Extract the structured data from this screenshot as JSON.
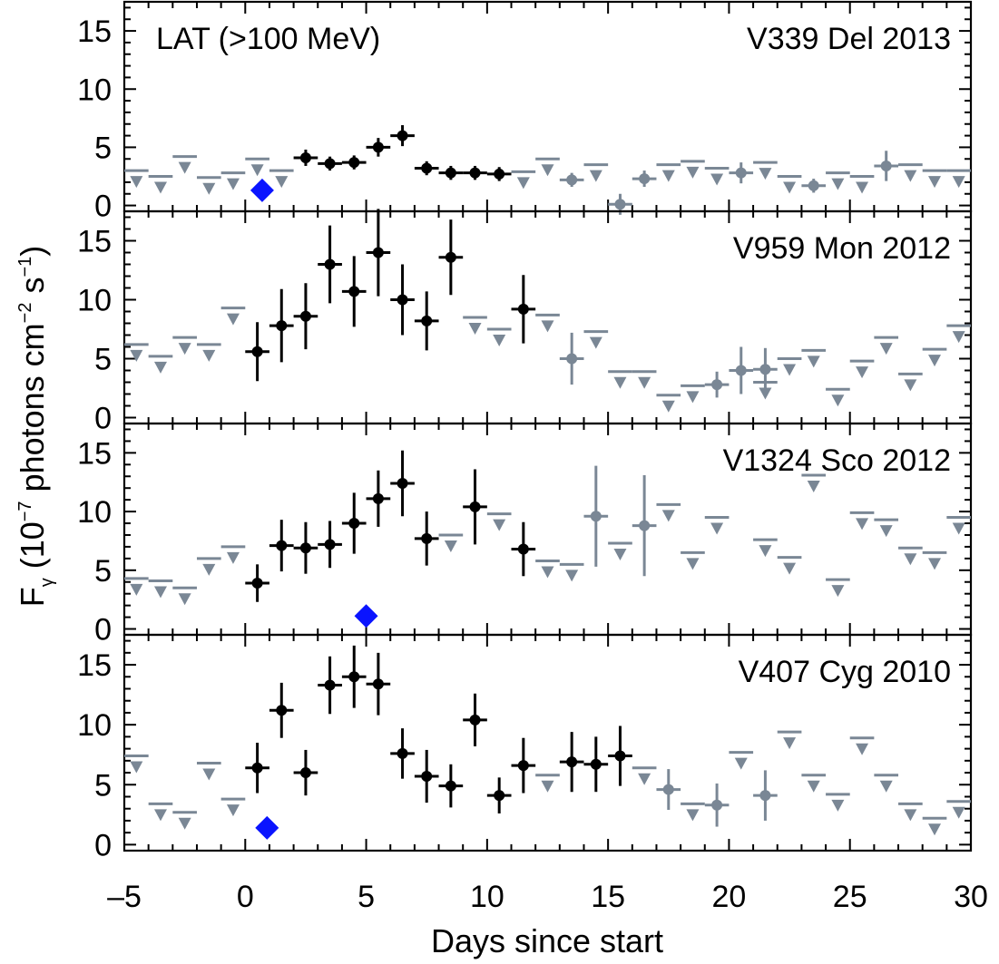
{
  "chart_data": {
    "type": "scatter",
    "xlabel": "Days since start",
    "ylabel_parts": [
      "F",
      "γ",
      " (10",
      "−7",
      "  photons cm",
      "−2",
      " s",
      "−1",
      ")"
    ],
    "xlim": [
      -5,
      30
    ],
    "x_ticks": [
      "–5",
      "0",
      "5",
      "10",
      "15",
      "20",
      "25",
      "30"
    ],
    "x_tick_values": [
      -5,
      0,
      5,
      10,
      15,
      20,
      25,
      30
    ],
    "y_ticks": [
      "0",
      "5",
      "10",
      "15"
    ],
    "y_tick_values": [
      0,
      5,
      10,
      15
    ],
    "colors": {
      "detection": "#000000",
      "upper_limit": "#7a8795",
      "marker": "#0a14ff"
    },
    "panels": [
      {
        "label": "V339 Del 2013",
        "instrument_label": "LAT (>100 MeV)",
        "ylim": [
          -0.5,
          17.5
        ],
        "detections": [
          {
            "x": 2.5,
            "y": 4.1,
            "yerr": 0.7
          },
          {
            "x": 3.5,
            "y": 3.6,
            "yerr": 0.6
          },
          {
            "x": 4.5,
            "y": 3.7,
            "yerr": 0.6
          },
          {
            "x": 5.5,
            "y": 5.0,
            "yerr": 0.8
          },
          {
            "x": 6.5,
            "y": 6.0,
            "yerr": 0.9
          },
          {
            "x": 7.5,
            "y": 3.2,
            "yerr": 0.6
          },
          {
            "x": 8.5,
            "y": 2.8,
            "yerr": 0.6
          },
          {
            "x": 9.5,
            "y": 2.8,
            "yerr": 0.6
          },
          {
            "x": 10.5,
            "y": 2.7,
            "yerr": 0.6
          }
        ],
        "upper_limits": [
          {
            "x": -4.5,
            "y": 3.0
          },
          {
            "x": -3.5,
            "y": 2.5
          },
          {
            "x": -2.5,
            "y": 4.2
          },
          {
            "x": -1.5,
            "y": 2.4
          },
          {
            "x": -0.5,
            "y": 2.8
          },
          {
            "x": 0.5,
            "y": 4.0
          },
          {
            "x": 1.5,
            "y": 3.0
          },
          {
            "x": 11.5,
            "y": 2.9
          },
          {
            "x": 12.5,
            "y": 4.0
          },
          {
            "x": 14.5,
            "y": 3.5
          },
          {
            "x": 17.5,
            "y": 3.5
          },
          {
            "x": 18.5,
            "y": 3.8
          },
          {
            "x": 19.5,
            "y": 3.2
          },
          {
            "x": 21.5,
            "y": 3.7
          },
          {
            "x": 22.5,
            "y": 2.5
          },
          {
            "x": 24.5,
            "y": 2.8
          },
          {
            "x": 25.5,
            "y": 2.5
          },
          {
            "x": 27.5,
            "y": 3.5
          },
          {
            "x": 28.5,
            "y": 3.0
          },
          {
            "x": 29.5,
            "y": 3.0
          }
        ],
        "gray_points": [
          {
            "x": 13.5,
            "y": 2.2,
            "yerr": 0.6
          },
          {
            "x": 15.5,
            "y": 0.1,
            "yerr": 0.9
          },
          {
            "x": 16.5,
            "y": 2.3,
            "yerr": 0.7
          },
          {
            "x": 20.5,
            "y": 2.8,
            "yerr": 0.9
          },
          {
            "x": 23.5,
            "y": 1.7,
            "yerr": 0.6
          },
          {
            "x": 26.5,
            "y": 3.4,
            "yerr": 1.3
          }
        ],
        "markers": [
          {
            "x": 0.7,
            "y": 1.3
          }
        ]
      },
      {
        "label": "V959 Mon 2012",
        "ylim": [
          -0.5,
          17.5
        ],
        "detections": [
          {
            "x": 0.5,
            "y": 5.6,
            "yerr": 2.5
          },
          {
            "x": 1.5,
            "y": 7.8,
            "yerr": 3.1
          },
          {
            "x": 2.5,
            "y": 8.6,
            "yerr": 2.8
          },
          {
            "x": 3.5,
            "y": 13.0,
            "yerr": 3.3
          },
          {
            "x": 4.5,
            "y": 10.7,
            "yerr": 3.0
          },
          {
            "x": 5.5,
            "y": 14.0,
            "yerr": 3.7
          },
          {
            "x": 6.5,
            "y": 10.0,
            "yerr": 3.0
          },
          {
            "x": 7.5,
            "y": 8.2,
            "yerr": 2.5
          },
          {
            "x": 8.5,
            "y": 13.6,
            "yerr": 3.2
          },
          {
            "x": 11.5,
            "y": 9.2,
            "yerr": 2.9
          }
        ],
        "upper_limits": [
          {
            "x": -4.5,
            "y": 6.2
          },
          {
            "x": -3.5,
            "y": 5.2
          },
          {
            "x": -2.5,
            "y": 6.8
          },
          {
            "x": -1.5,
            "y": 6.2
          },
          {
            "x": -0.5,
            "y": 9.3
          },
          {
            "x": 9.5,
            "y": 8.5
          },
          {
            "x": 10.5,
            "y": 7.5
          },
          {
            "x": 12.5,
            "y": 8.7
          },
          {
            "x": 14.5,
            "y": 7.3
          },
          {
            "x": 15.5,
            "y": 3.9
          },
          {
            "x": 16.5,
            "y": 3.9
          },
          {
            "x": 17.5,
            "y": 1.9
          },
          {
            "x": 18.5,
            "y": 2.7
          },
          {
            "x": 21.5,
            "y": 3.0
          },
          {
            "x": 22.5,
            "y": 5.0
          },
          {
            "x": 23.5,
            "y": 5.7
          },
          {
            "x": 24.5,
            "y": 2.4
          },
          {
            "x": 25.5,
            "y": 4.8
          },
          {
            "x": 26.5,
            "y": 6.8
          },
          {
            "x": 27.5,
            "y": 3.7
          },
          {
            "x": 28.5,
            "y": 5.8
          },
          {
            "x": 29.5,
            "y": 7.8
          }
        ],
        "gray_points": [
          {
            "x": 13.5,
            "y": 5.0,
            "yerr": 2.2
          },
          {
            "x": 19.5,
            "y": 2.8,
            "yerr": 1.1
          },
          {
            "x": 20.5,
            "y": 4.0,
            "yerr": 2.0
          },
          {
            "x": 21.5,
            "y": 4.1,
            "yerr": 1.8
          }
        ],
        "markers": []
      },
      {
        "label": "V1324 Sco 2012",
        "ylim": [
          -0.5,
          17.5
        ],
        "detections": [
          {
            "x": 0.5,
            "y": 3.9,
            "yerr": 1.6
          },
          {
            "x": 1.5,
            "y": 7.1,
            "yerr": 2.2
          },
          {
            "x": 2.5,
            "y": 6.9,
            "yerr": 2.2
          },
          {
            "x": 3.5,
            "y": 7.2,
            "yerr": 2.0
          },
          {
            "x": 4.5,
            "y": 9.0,
            "yerr": 2.6
          },
          {
            "x": 5.5,
            "y": 11.1,
            "yerr": 2.4
          },
          {
            "x": 6.5,
            "y": 12.4,
            "yerr": 2.8
          },
          {
            "x": 7.5,
            "y": 7.7,
            "yerr": 2.3
          },
          {
            "x": 9.5,
            "y": 10.4,
            "yerr": 3.2
          },
          {
            "x": 11.5,
            "y": 6.8,
            "yerr": 2.3
          }
        ],
        "upper_limits": [
          {
            "x": -4.5,
            "y": 4.3
          },
          {
            "x": -3.5,
            "y": 4.1
          },
          {
            "x": -2.5,
            "y": 3.5
          },
          {
            "x": -1.5,
            "y": 6.0
          },
          {
            "x": -0.5,
            "y": 7.0
          },
          {
            "x": 8.5,
            "y": 8.0
          },
          {
            "x": 10.5,
            "y": 9.8
          },
          {
            "x": 12.5,
            "y": 5.8
          },
          {
            "x": 13.5,
            "y": 5.5
          },
          {
            "x": 15.5,
            "y": 7.3
          },
          {
            "x": 17.5,
            "y": 10.6
          },
          {
            "x": 18.5,
            "y": 6.5
          },
          {
            "x": 19.5,
            "y": 9.5
          },
          {
            "x": 21.5,
            "y": 7.6
          },
          {
            "x": 22.5,
            "y": 6.1
          },
          {
            "x": 23.5,
            "y": 13.1
          },
          {
            "x": 24.5,
            "y": 4.2
          },
          {
            "x": 25.5,
            "y": 9.9
          },
          {
            "x": 26.5,
            "y": 9.3
          },
          {
            "x": 27.5,
            "y": 6.9
          },
          {
            "x": 28.5,
            "y": 6.5
          },
          {
            "x": 29.5,
            "y": 9.5
          }
        ],
        "gray_points": [
          {
            "x": 14.5,
            "y": 9.6,
            "yerr": 4.3
          },
          {
            "x": 16.5,
            "y": 8.8,
            "yerr": 4.3
          }
        ],
        "markers": [
          {
            "x": 5.0,
            "y": 1.1
          }
        ]
      },
      {
        "label": "V407 Cyg 2010",
        "ylim": [
          -0.5,
          17.5
        ],
        "detections": [
          {
            "x": 0.5,
            "y": 6.4,
            "yerr": 2.1
          },
          {
            "x": 1.5,
            "y": 11.2,
            "yerr": 2.3
          },
          {
            "x": 2.5,
            "y": 6.0,
            "yerr": 1.9
          },
          {
            "x": 3.5,
            "y": 13.3,
            "yerr": 2.4
          },
          {
            "x": 4.5,
            "y": 14.0,
            "yerr": 2.6
          },
          {
            "x": 5.5,
            "y": 13.4,
            "yerr": 2.6
          },
          {
            "x": 6.5,
            "y": 7.6,
            "yerr": 2.1
          },
          {
            "x": 7.5,
            "y": 5.7,
            "yerr": 2.2
          },
          {
            "x": 8.5,
            "y": 4.9,
            "yerr": 1.8
          },
          {
            "x": 9.5,
            "y": 10.4,
            "yerr": 2.2
          },
          {
            "x": 10.5,
            "y": 4.1,
            "yerr": 1.5
          },
          {
            "x": 11.5,
            "y": 6.6,
            "yerr": 2.3
          },
          {
            "x": 13.5,
            "y": 6.9,
            "yerr": 2.5
          },
          {
            "x": 14.5,
            "y": 6.7,
            "yerr": 2.3
          },
          {
            "x": 15.5,
            "y": 7.4,
            "yerr": 2.5
          }
        ],
        "upper_limits": [
          {
            "x": -4.5,
            "y": 7.4
          },
          {
            "x": -3.5,
            "y": 3.4
          },
          {
            "x": -2.5,
            "y": 2.7
          },
          {
            "x": -1.5,
            "y": 6.8
          },
          {
            "x": -0.5,
            "y": 3.8
          },
          {
            "x": 12.5,
            "y": 5.8
          },
          {
            "x": 16.5,
            "y": 6.4
          },
          {
            "x": 18.5,
            "y": 3.4
          },
          {
            "x": 20.5,
            "y": 7.7
          },
          {
            "x": 22.5,
            "y": 9.4
          },
          {
            "x": 23.5,
            "y": 5.8
          },
          {
            "x": 24.5,
            "y": 4.2
          },
          {
            "x": 25.5,
            "y": 8.9
          },
          {
            "x": 26.5,
            "y": 5.8
          },
          {
            "x": 27.5,
            "y": 3.4
          },
          {
            "x": 28.5,
            "y": 2.2
          },
          {
            "x": 29.5,
            "y": 3.6
          }
        ],
        "gray_points": [
          {
            "x": 17.5,
            "y": 4.6,
            "yerr": 1.7
          },
          {
            "x": 19.5,
            "y": 3.3,
            "yerr": 1.8
          },
          {
            "x": 21.5,
            "y": 4.1,
            "yerr": 2.1
          }
        ],
        "markers": [
          {
            "x": 0.9,
            "y": 1.4
          }
        ]
      }
    ]
  }
}
